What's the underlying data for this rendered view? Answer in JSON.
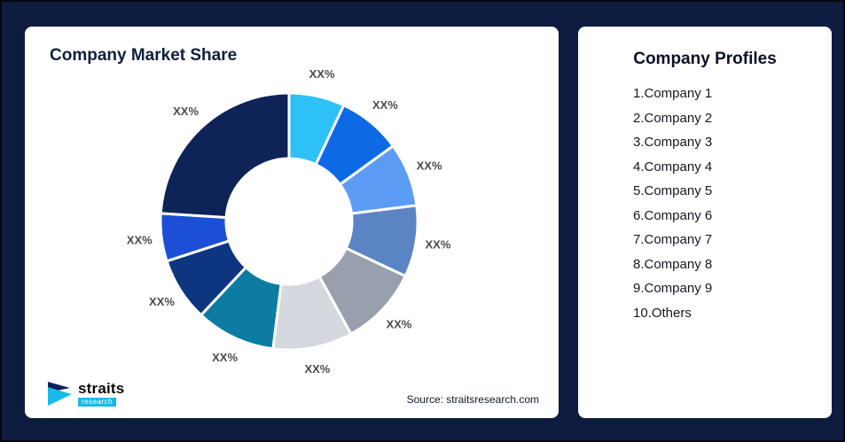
{
  "chart_data": {
    "type": "pie",
    "variant": "donut",
    "title": "Company Market Share",
    "source": "Source: straitsresearch.com",
    "labels": [
      "Company 1",
      "Company 2",
      "Company 3",
      "Company 4",
      "Company 5",
      "Company 6",
      "Company 7",
      "Company 8",
      "Company 9",
      "Others"
    ],
    "values": [
      7,
      8,
      8,
      9,
      10,
      10,
      10,
      8,
      6,
      24
    ],
    "segment_label_text": "XX%",
    "colors": [
      "#2ec1f7",
      "#0d6ae4",
      "#5d9cf5",
      "#5b84c4",
      "#98a0ad",
      "#d5d8de",
      "#0c7ca3",
      "#0d3580",
      "#1b50d6",
      "#0e2357"
    ],
    "legend": "none",
    "start_angle_deg": 0,
    "direction": "clockwise"
  },
  "profiles": {
    "title": "Company Profiles",
    "items": [
      "1.Company 1",
      "2.Company 2",
      "3.Company 3",
      "4.Company 4",
      "5.Company 5",
      "6.Company 6",
      "7.Company 7",
      "8.Company 8",
      "9.Company 9",
      "10.Others"
    ]
  },
  "logo": {
    "brand": "straits",
    "sub": "research"
  },
  "colors": {
    "background": "#0d1c3f",
    "card": "#ffffff",
    "title_text": "#0e1f3d",
    "label_text": "#4a4a4a",
    "accent_cyan": "#19b9e8"
  }
}
